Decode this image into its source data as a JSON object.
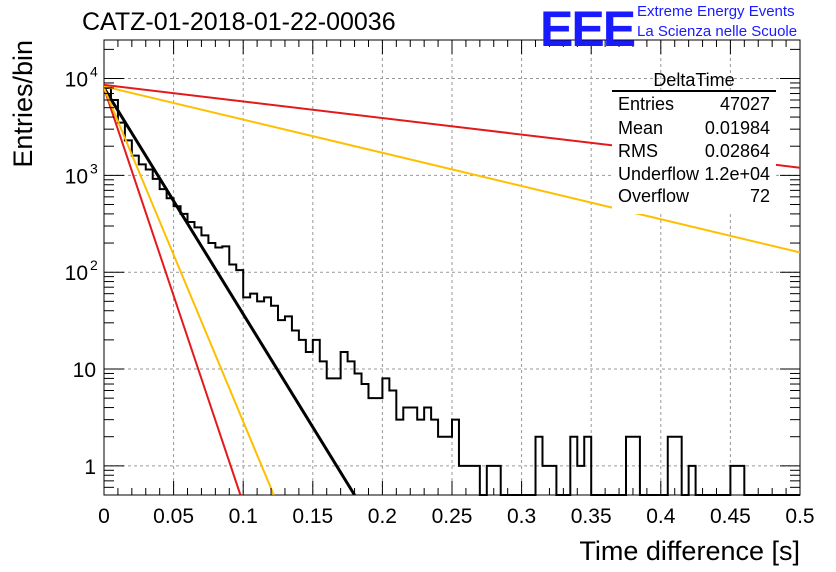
{
  "header": {
    "title": "CATZ-01-2018-01-22-00036",
    "logo_text": "EEE",
    "logo_line1": "Extreme Energy Events",
    "logo_line2": "La Scienza nelle Scuole"
  },
  "stats": {
    "name": "DeltaTime",
    "rows": [
      {
        "label": "Entries",
        "value": "47027"
      },
      {
        "label": "Mean",
        "value": "0.01984"
      },
      {
        "label": "RMS",
        "value": "0.02864"
      },
      {
        "label": "Underflow",
        "value": "1.2e+04"
      },
      {
        "label": "Overflow",
        "value": "72"
      }
    ]
  },
  "colors": {
    "histogram": "#000000",
    "fit_black": "#000000",
    "fit_red": "#e31a1c",
    "fit_orange": "#ffbf00",
    "logo": "#1a1aff"
  },
  "chart_data": {
    "type": "line",
    "xlabel": "Time difference [s]",
    "ylabel": "Entries/bin",
    "xlim": [
      0,
      0.5
    ],
    "ylim": [
      0.5,
      25000
    ],
    "yscale": "log",
    "grid": true,
    "x_ticks": [
      "0",
      "0.05",
      "0.1",
      "0.15",
      "0.2",
      "0.25",
      "0.3",
      "0.35",
      "0.4",
      "0.45",
      "0.5"
    ],
    "x_tick_values": [
      0,
      0.05,
      0.1,
      0.15,
      0.2,
      0.25,
      0.3,
      0.35,
      0.4,
      0.45,
      0.5
    ],
    "y_ticks": [
      {
        "value": 1,
        "base": "1",
        "exp": ""
      },
      {
        "value": 10,
        "base": "10",
        "exp": ""
      },
      {
        "value": 100,
        "base": "10",
        "exp": "2"
      },
      {
        "value": 1000,
        "base": "10",
        "exp": "3"
      },
      {
        "value": 10000,
        "base": "10",
        "exp": "4"
      }
    ],
    "histogram": {
      "bin_width": 0.005,
      "x_start": 0,
      "values": [
        8000,
        6000,
        3500,
        2300,
        1600,
        1300,
        1150,
        920,
        720,
        580,
        480,
        400,
        330,
        290,
        240,
        200,
        180,
        185,
        120,
        105,
        55,
        60,
        50,
        55,
        45,
        32,
        35,
        25,
        20,
        15,
        20,
        12,
        8,
        8,
        15,
        12,
        9,
        7,
        5,
        5,
        8,
        6,
        3,
        4,
        4,
        3,
        4,
        3,
        2,
        2,
        3,
        1,
        1,
        1,
        0,
        1,
        1,
        0,
        0,
        0,
        0,
        0,
        2,
        1,
        1,
        0,
        0,
        2,
        1,
        2,
        0,
        0,
        0,
        0,
        0,
        2,
        2,
        0,
        0,
        0,
        0,
        2,
        2,
        0,
        1,
        0,
        0,
        0,
        0,
        0,
        1,
        1,
        0,
        0,
        0,
        0,
        0,
        0,
        0,
        0
      ]
    },
    "series": [
      {
        "color": "#000000",
        "points": [
          [
            0,
            8000
          ],
          [
            0.18,
            0.5
          ]
        ]
      },
      {
        "color": "#e31a1c",
        "points": [
          [
            0,
            8000
          ],
          [
            0.098,
            0.5
          ]
        ]
      },
      {
        "color": "#ffbf00",
        "points": [
          [
            0,
            8000
          ],
          [
            0.122,
            0.5
          ]
        ]
      },
      {
        "color": "#ffbf00",
        "points": [
          [
            0,
            8300
          ],
          [
            0.5,
            160
          ]
        ]
      },
      {
        "color": "#e31a1c",
        "points": [
          [
            0,
            8600
          ],
          [
            0.5,
            1200
          ]
        ]
      }
    ]
  }
}
